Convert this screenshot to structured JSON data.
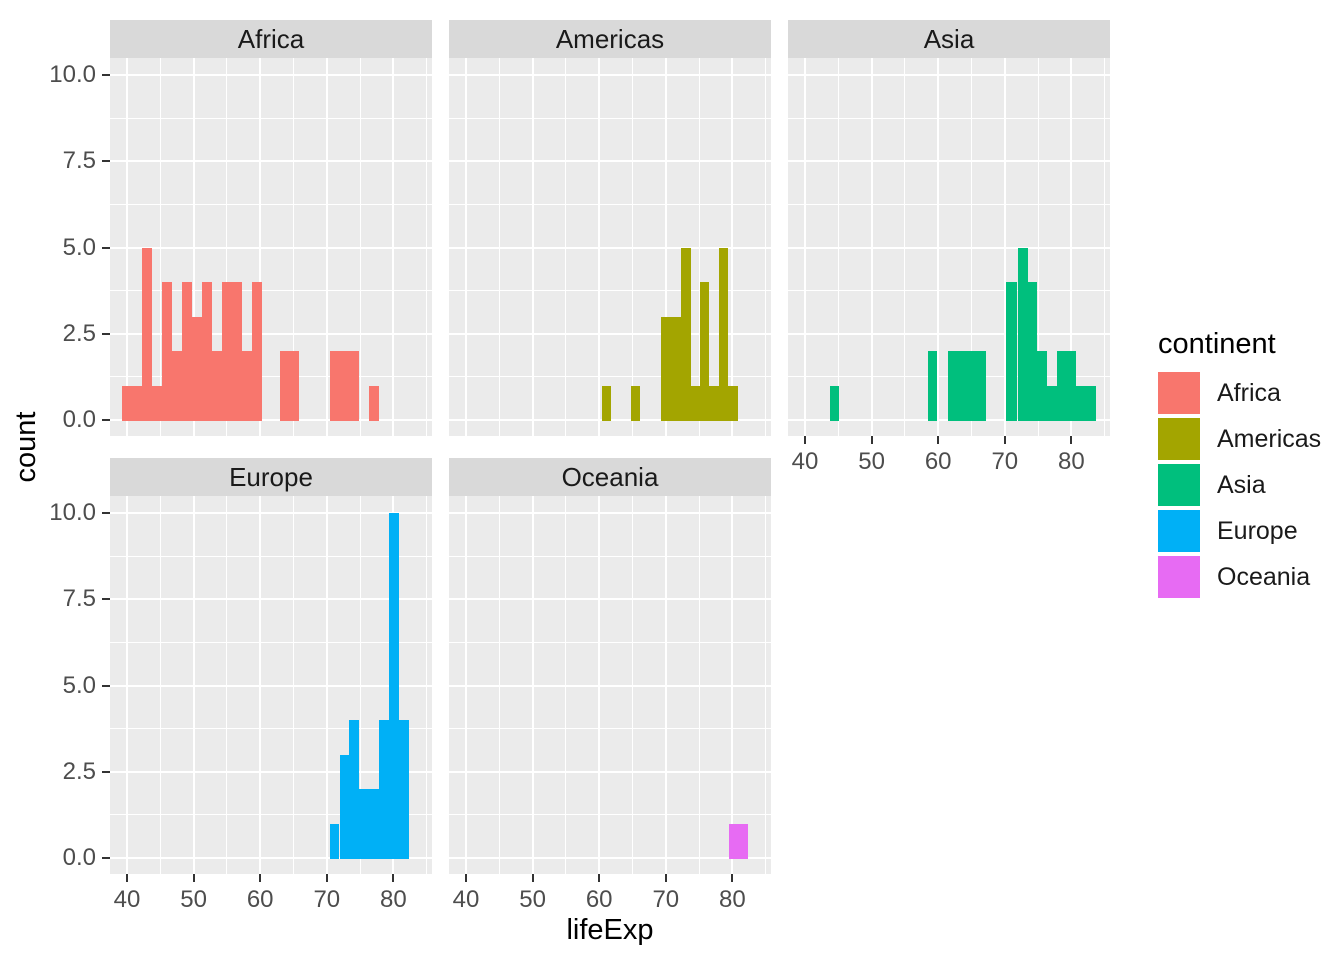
{
  "chart_data": {
    "type": "bar",
    "subtype": "faceted-histogram",
    "title": "",
    "xlabel": "lifeExp",
    "ylabel": "count",
    "facet_variable": "continent",
    "x_ticks": [
      40,
      50,
      60,
      70,
      80
    ],
    "x_minor_ticks": [
      45,
      55,
      65,
      75,
      85
    ],
    "y_ticks": [
      {
        "label": "0.0",
        "value": 0
      },
      {
        "label": "2.5",
        "value": 2.5
      },
      {
        "label": "5.0",
        "value": 5
      },
      {
        "label": "7.5",
        "value": 7.5
      },
      {
        "label": "10.0",
        "value": 10
      }
    ],
    "y_minor_ticks": [
      1.25,
      3.75,
      6.25,
      8.75
    ],
    "x_range": [
      37.5,
      85.8
    ],
    "y_range": [
      0,
      10.5
    ],
    "grid": true,
    "legend_position": "right",
    "colors": {
      "panel_bg": "#EBEBEB",
      "strip_bg": "#D9D9D9",
      "grid": "#FFFFFF",
      "tick_label": "#4D4D4D",
      "tick_mark": "#333333"
    },
    "facets": [
      {
        "label": "Africa",
        "color": "#F8766D",
        "bars": [
          [
            39.2,
            42.2,
            1
          ],
          [
            42.2,
            43.7,
            5
          ],
          [
            43.7,
            45.2,
            1
          ],
          [
            45.2,
            46.7,
            4
          ],
          [
            46.7,
            48.2,
            2
          ],
          [
            48.2,
            49.7,
            4
          ],
          [
            49.7,
            51.2,
            3
          ],
          [
            51.2,
            52.7,
            4
          ],
          [
            52.7,
            54.2,
            2
          ],
          [
            54.2,
            57.2,
            4
          ],
          [
            57.2,
            58.7,
            2
          ],
          [
            58.7,
            60.2,
            4
          ],
          [
            63.0,
            65.9,
            2
          ],
          [
            70.5,
            74.9,
            2
          ],
          [
            76.4,
            77.9,
            1
          ]
        ]
      },
      {
        "label": "Americas",
        "color": "#A3A500",
        "bars": [
          [
            60.4,
            61.8,
            1
          ],
          [
            64.7,
            66.1,
            1
          ],
          [
            69.3,
            72.3,
            3
          ],
          [
            72.3,
            73.8,
            5
          ],
          [
            73.8,
            75.1,
            1
          ],
          [
            75.1,
            76.5,
            4
          ],
          [
            76.5,
            78.0,
            1
          ],
          [
            78.0,
            79.4,
            5
          ],
          [
            79.4,
            80.9,
            1
          ]
        ]
      },
      {
        "label": "Asia",
        "color": "#00BF7D",
        "bars": [
          [
            43.7,
            45.1,
            1
          ],
          [
            58.5,
            59.9,
            2
          ],
          [
            61.5,
            67.2,
            2
          ],
          [
            70.2,
            71.9,
            4
          ],
          [
            71.9,
            73.4,
            5
          ],
          [
            73.4,
            74.9,
            4
          ],
          [
            74.9,
            76.4,
            2
          ],
          [
            76.4,
            77.8,
            1
          ],
          [
            77.8,
            80.7,
            2
          ],
          [
            80.7,
            83.7,
            1
          ]
        ]
      },
      {
        "label": "Europe",
        "color": "#00B0F6",
        "bars": [
          [
            70.5,
            71.9,
            1
          ],
          [
            71.9,
            73.4,
            3
          ],
          [
            73.4,
            74.9,
            4
          ],
          [
            74.9,
            77.9,
            2
          ],
          [
            77.9,
            79.4,
            4
          ],
          [
            79.4,
            80.9,
            10
          ],
          [
            80.9,
            82.4,
            4
          ]
        ]
      },
      {
        "label": "Oceania",
        "color": "#E76BF3",
        "bars": [
          [
            79.5,
            82.4,
            1
          ]
        ]
      }
    ],
    "legend": {
      "title": "continent",
      "entries": [
        {
          "label": "Africa",
          "color": "#F8766D"
        },
        {
          "label": "Americas",
          "color": "#A3A500"
        },
        {
          "label": "Asia",
          "color": "#00BF7D"
        },
        {
          "label": "Europe",
          "color": "#00B0F6"
        },
        {
          "label": "Oceania",
          "color": "#E76BF3"
        }
      ]
    }
  }
}
